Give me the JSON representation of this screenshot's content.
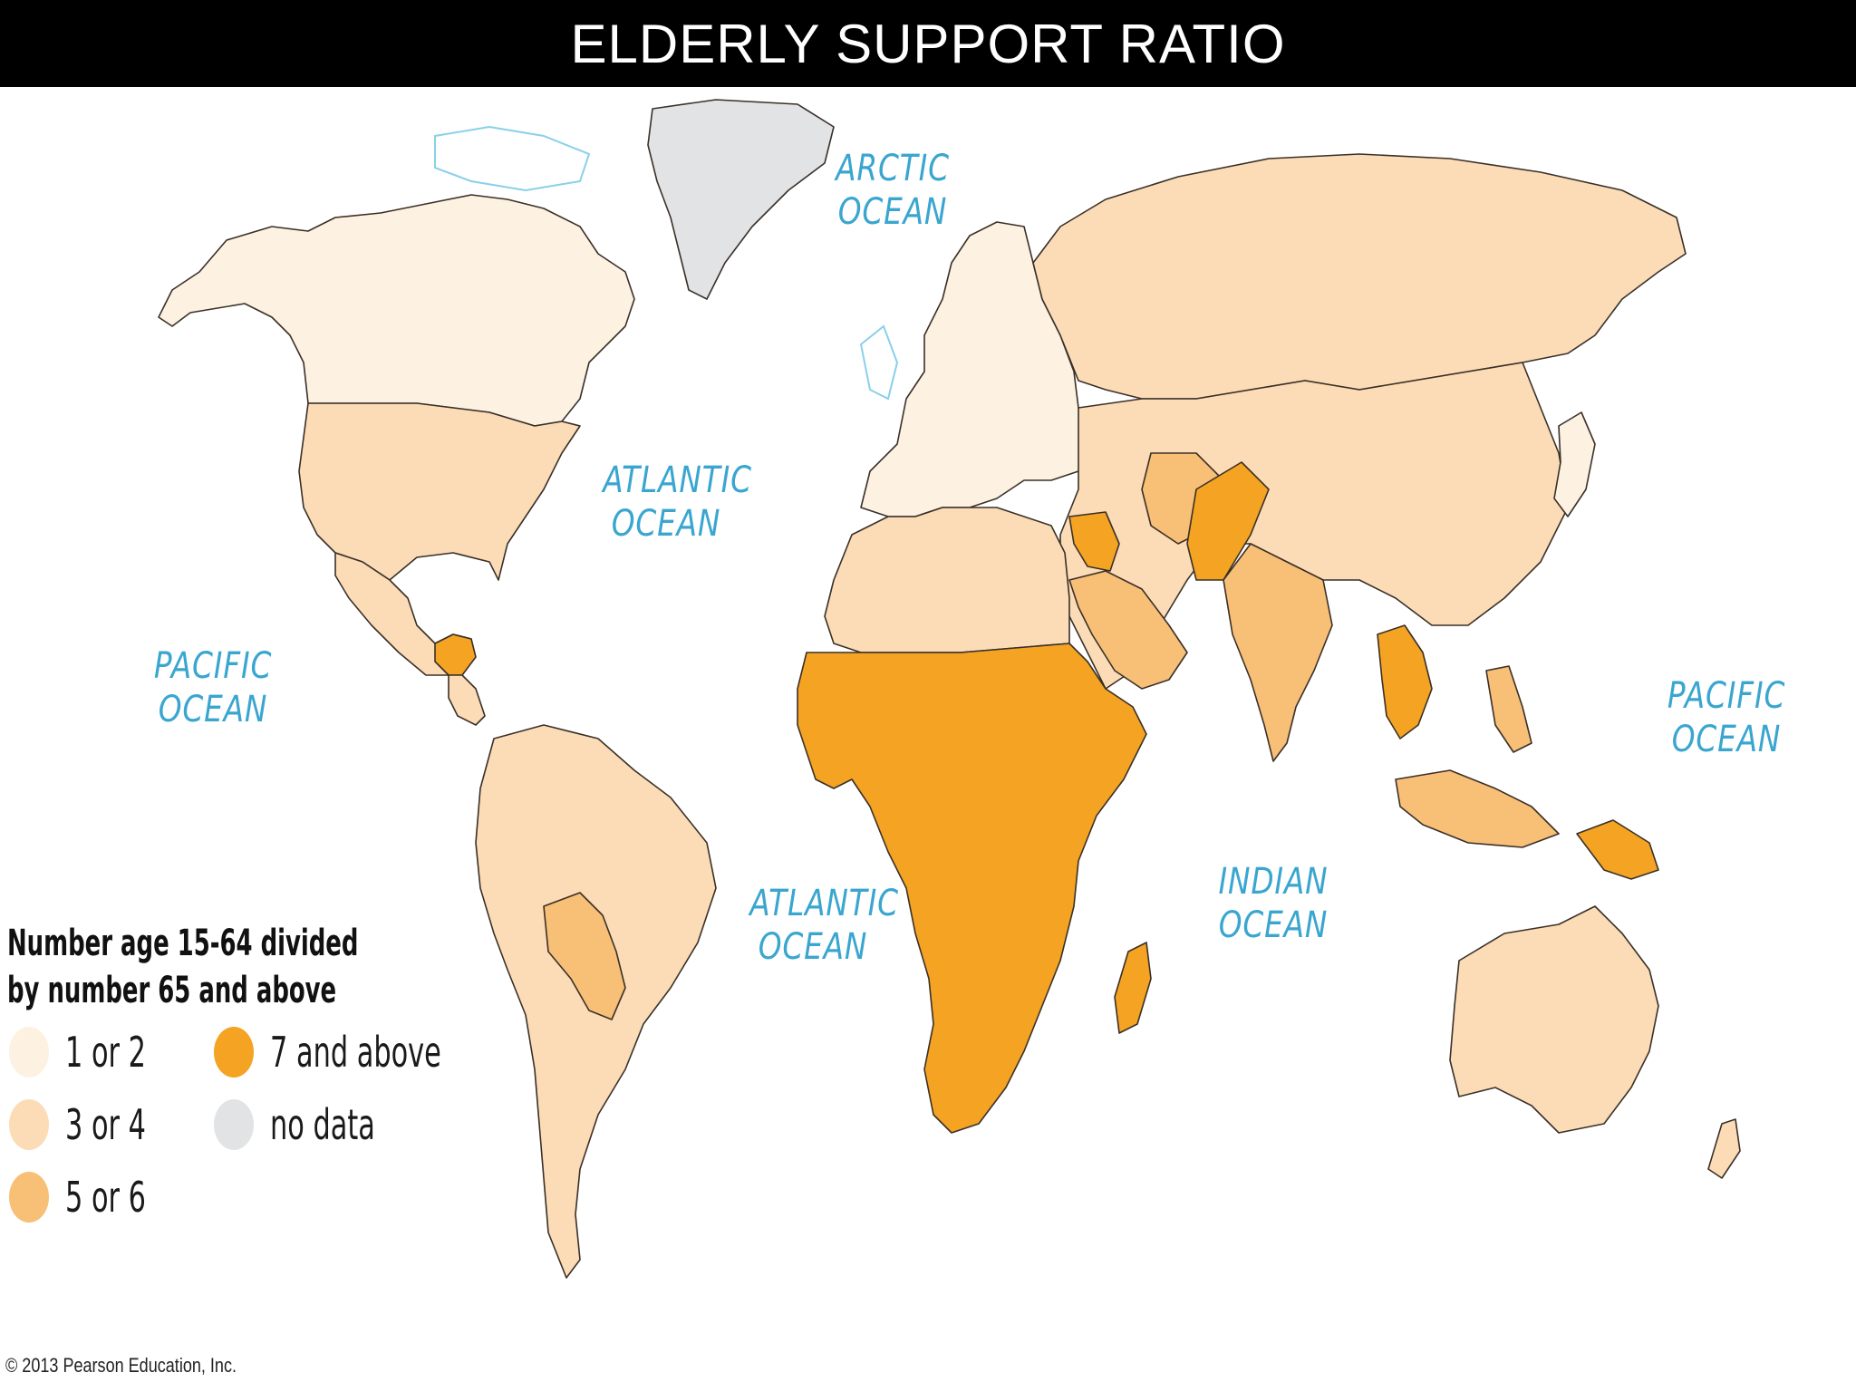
{
  "header": {
    "title": "ELDERLY SUPPORT RATIO"
  },
  "oceans": {
    "arctic": "ARCTIC\nOCEAN",
    "atlantic_north": "ATLANTIC\nOCEAN",
    "atlantic_south": "ATLANTIC\nOCEAN",
    "pacific_east": "PACIFIC\nOCEAN",
    "pacific_west": "PACIFIC\nOCEAN",
    "indian": "INDIAN\nOCEAN"
  },
  "legend": {
    "title_line1": "Number age 15-64 divided",
    "title_line2": "by number 65 and above",
    "items": [
      {
        "label": "1 or 2",
        "color": "#fdf1e2"
      },
      {
        "label": "3 or 4",
        "color": "#fbdcb6"
      },
      {
        "label": "5 or 6",
        "color": "#f8bf76"
      },
      {
        "label": "7 and above",
        "color": "#f4a322"
      },
      {
        "label": "no data",
        "color": "#e2e3e5"
      }
    ]
  },
  "colors": {
    "ocean": "#ffffff",
    "coastline": "#6cc4e4",
    "border": "#3a3028"
  },
  "copyright": "© 2013 Pearson Education, Inc."
}
